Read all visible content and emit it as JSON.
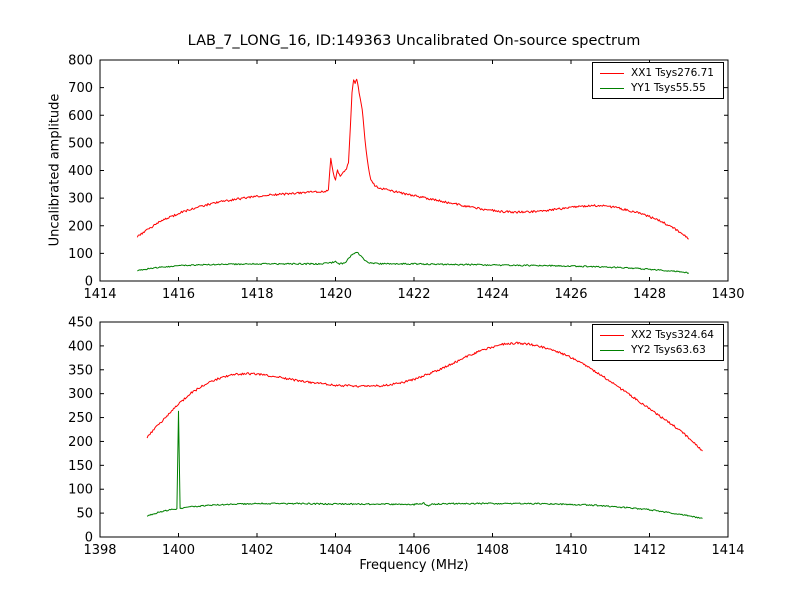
{
  "figure": {
    "title": "LAB_7_LONG_16, ID:149363 Uncalibrated On-source spectrum",
    "xlabel": "Frequency (MHz)",
    "ylabel": "Uncalibrated amplitude"
  },
  "chart_data": [
    {
      "type": "line",
      "xlim": [
        1414,
        1430
      ],
      "ylim": [
        0,
        800
      ],
      "xticks": [
        1414,
        1416,
        1418,
        1420,
        1422,
        1424,
        1426,
        1428,
        1430
      ],
      "yticks": [
        0,
        100,
        200,
        300,
        400,
        500,
        600,
        700,
        800
      ],
      "grid": false,
      "legend_position": "upper right",
      "series": [
        {
          "name": "XX1 Tsys276.71",
          "color": "#ff0000",
          "points": [
            [
              1414.95,
              160
            ],
            [
              1415.2,
              185
            ],
            [
              1415.5,
              212
            ],
            [
              1415.8,
              232
            ],
            [
              1416.1,
              250
            ],
            [
              1416.5,
              268
            ],
            [
              1417.0,
              285
            ],
            [
              1417.5,
              297
            ],
            [
              1418.0,
              306
            ],
            [
              1418.5,
              313
            ],
            [
              1419.0,
              318
            ],
            [
              1419.4,
              322
            ],
            [
              1419.7,
              324
            ],
            [
              1419.82,
              330
            ],
            [
              1419.88,
              445
            ],
            [
              1419.94,
              395
            ],
            [
              1420.0,
              365
            ],
            [
              1420.05,
              400
            ],
            [
              1420.12,
              375
            ],
            [
              1420.2,
              395
            ],
            [
              1420.28,
              405
            ],
            [
              1420.33,
              430
            ],
            [
              1420.38,
              560
            ],
            [
              1420.42,
              680
            ],
            [
              1420.46,
              725
            ],
            [
              1420.5,
              715
            ],
            [
              1420.54,
              730
            ],
            [
              1420.58,
              700
            ],
            [
              1420.63,
              660
            ],
            [
              1420.68,
              620
            ],
            [
              1420.72,
              560
            ],
            [
              1420.78,
              470
            ],
            [
              1420.84,
              410
            ],
            [
              1420.9,
              370
            ],
            [
              1421.0,
              345
            ],
            [
              1421.15,
              335
            ],
            [
              1421.4,
              327
            ],
            [
              1421.8,
              315
            ],
            [
              1422.2,
              303
            ],
            [
              1422.6,
              292
            ],
            [
              1423.0,
              280
            ],
            [
              1423.4,
              269
            ],
            [
              1423.8,
              259
            ],
            [
              1424.2,
              252
            ],
            [
              1424.6,
              249
            ],
            [
              1425.0,
              251
            ],
            [
              1425.4,
              256
            ],
            [
              1425.8,
              263
            ],
            [
              1426.2,
              270
            ],
            [
              1426.5,
              273
            ],
            [
              1426.8,
              272
            ],
            [
              1427.1,
              267
            ],
            [
              1427.4,
              258
            ],
            [
              1427.7,
              247
            ],
            [
              1428.0,
              233
            ],
            [
              1428.3,
              215
            ],
            [
              1428.6,
              193
            ],
            [
              1428.85,
              170
            ],
            [
              1429.0,
              152
            ]
          ]
        },
        {
          "name": "YY1 Tsys55.55",
          "color": "#008000",
          "points": [
            [
              1414.95,
              38
            ],
            [
              1415.3,
              46
            ],
            [
              1415.7,
              52
            ],
            [
              1416.2,
              57
            ],
            [
              1417.0,
              60
            ],
            [
              1418.0,
              62
            ],
            [
              1419.0,
              62
            ],
            [
              1419.6,
              62
            ],
            [
              1419.9,
              66
            ],
            [
              1420.0,
              70
            ],
            [
              1420.1,
              62
            ],
            [
              1420.25,
              66
            ],
            [
              1420.35,
              85
            ],
            [
              1420.45,
              100
            ],
            [
              1420.55,
              103
            ],
            [
              1420.65,
              92
            ],
            [
              1420.75,
              75
            ],
            [
              1420.85,
              66
            ],
            [
              1421.0,
              63
            ],
            [
              1421.5,
              62
            ],
            [
              1422.0,
              62
            ],
            [
              1423.0,
              60
            ],
            [
              1424.0,
              58
            ],
            [
              1425.0,
              56
            ],
            [
              1426.0,
              54
            ],
            [
              1426.8,
              51
            ],
            [
              1427.5,
              47
            ],
            [
              1428.2,
              40
            ],
            [
              1428.7,
              34
            ],
            [
              1429.0,
              29
            ]
          ]
        }
      ]
    },
    {
      "type": "line",
      "xlim": [
        1398,
        1414
      ],
      "ylim": [
        0,
        450
      ],
      "xticks": [
        1398,
        1400,
        1402,
        1404,
        1406,
        1408,
        1410,
        1412,
        1414
      ],
      "yticks": [
        0,
        50,
        100,
        150,
        200,
        250,
        300,
        350,
        400,
        450
      ],
      "grid": false,
      "legend_position": "upper right",
      "series": [
        {
          "name": "XX2 Tsys324.64",
          "color": "#ff0000",
          "points": [
            [
              1399.2,
              208
            ],
            [
              1399.4,
              228
            ],
            [
              1399.7,
              252
            ],
            [
              1400.0,
              278
            ],
            [
              1400.3,
              300
            ],
            [
              1400.6,
              316
            ],
            [
              1400.9,
              328
            ],
            [
              1401.2,
              336
            ],
            [
              1401.5,
              341
            ],
            [
              1401.8,
              342
            ],
            [
              1402.1,
              340
            ],
            [
              1402.5,
              335
            ],
            [
              1403.0,
              328
            ],
            [
              1403.5,
              322
            ],
            [
              1404.0,
              318
            ],
            [
              1404.4,
              316
            ],
            [
              1404.8,
              315
            ],
            [
              1405.2,
              317
            ],
            [
              1405.6,
              321
            ],
            [
              1406.0,
              330
            ],
            [
              1406.4,
              342
            ],
            [
              1406.8,
              356
            ],
            [
              1407.2,
              372
            ],
            [
              1407.6,
              387
            ],
            [
              1408.0,
              398
            ],
            [
              1408.3,
              404
            ],
            [
              1408.6,
              406
            ],
            [
              1408.9,
              404
            ],
            [
              1409.2,
              399
            ],
            [
              1409.6,
              390
            ],
            [
              1410.0,
              376
            ],
            [
              1410.4,
              358
            ],
            [
              1410.8,
              337
            ],
            [
              1411.2,
              314
            ],
            [
              1411.6,
              292
            ],
            [
              1412.0,
              268
            ],
            [
              1412.4,
              245
            ],
            [
              1412.8,
              222
            ],
            [
              1413.1,
              200
            ],
            [
              1413.35,
              180
            ]
          ]
        },
        {
          "name": "YY2 Tsys63.63",
          "color": "#008000",
          "points": [
            [
              1399.2,
              44
            ],
            [
              1399.5,
              52
            ],
            [
              1399.8,
              57
            ],
            [
              1399.96,
              59
            ],
            [
              1400.0,
              263
            ],
            [
              1400.04,
              60
            ],
            [
              1400.3,
              63
            ],
            [
              1400.7,
              66
            ],
            [
              1401.2,
              68
            ],
            [
              1402.0,
              70
            ],
            [
              1403.0,
              70
            ],
            [
              1404.0,
              69
            ],
            [
              1405.0,
              69
            ],
            [
              1406.0,
              68
            ],
            [
              1406.25,
              71
            ],
            [
              1406.32,
              65
            ],
            [
              1406.5,
              69
            ],
            [
              1407.0,
              70
            ],
            [
              1408.0,
              70
            ],
            [
              1409.0,
              70
            ],
            [
              1410.0,
              68
            ],
            [
              1410.5,
              67
            ],
            [
              1411.0,
              64
            ],
            [
              1411.5,
              61
            ],
            [
              1412.0,
              57
            ],
            [
              1412.5,
              51
            ],
            [
              1413.0,
              44
            ],
            [
              1413.35,
              39
            ]
          ]
        }
      ]
    }
  ]
}
